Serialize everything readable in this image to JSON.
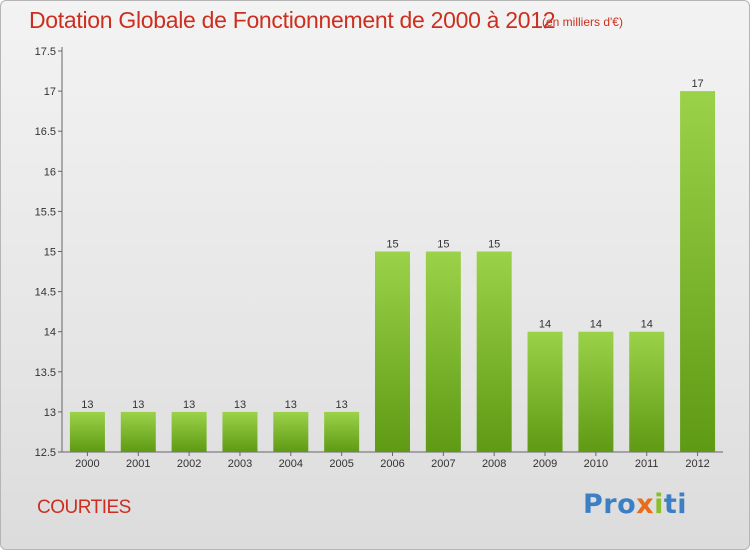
{
  "header": {
    "title": "Dotation Globale de Fonctionnement de 2000 à 2012",
    "unit_note": "(en milliers d'€)"
  },
  "footer": {
    "commune": "COURTIES",
    "logo_parts": [
      "Pro",
      "x",
      "i",
      "ti"
    ]
  },
  "colors": {
    "title": "#cc2f1f",
    "bar_top": "#9bd24a",
    "bar_bottom": "#5f9a14"
  },
  "chart_data": {
    "type": "bar",
    "title": "Dotation Globale de Fonctionnement de 2000 à 2012",
    "subtitle": "(en milliers d'€)",
    "xlabel": "",
    "ylabel": "",
    "categories": [
      "2000",
      "2001",
      "2002",
      "2003",
      "2004",
      "2005",
      "2006",
      "2007",
      "2008",
      "2009",
      "2010",
      "2011",
      "2012"
    ],
    "values": [
      13,
      13,
      13,
      13,
      13,
      13,
      15,
      15,
      15,
      14,
      14,
      14,
      17
    ],
    "value_labels": [
      "13",
      "13",
      "13",
      "13",
      "13",
      "13",
      "15",
      "15",
      "15",
      "14",
      "14",
      "14",
      "17"
    ],
    "ylim": [
      12.5,
      17.5
    ],
    "yticks": [
      12.5,
      13,
      13.5,
      14,
      14.5,
      15,
      15.5,
      16,
      16.5,
      17,
      17.5
    ],
    "ytick_labels": [
      "12.5",
      "13",
      "13.5",
      "14",
      "14.5",
      "15",
      "15.5",
      "16",
      "16.5",
      "17",
      "17.5"
    ],
    "grid": false,
    "legend": "none"
  }
}
